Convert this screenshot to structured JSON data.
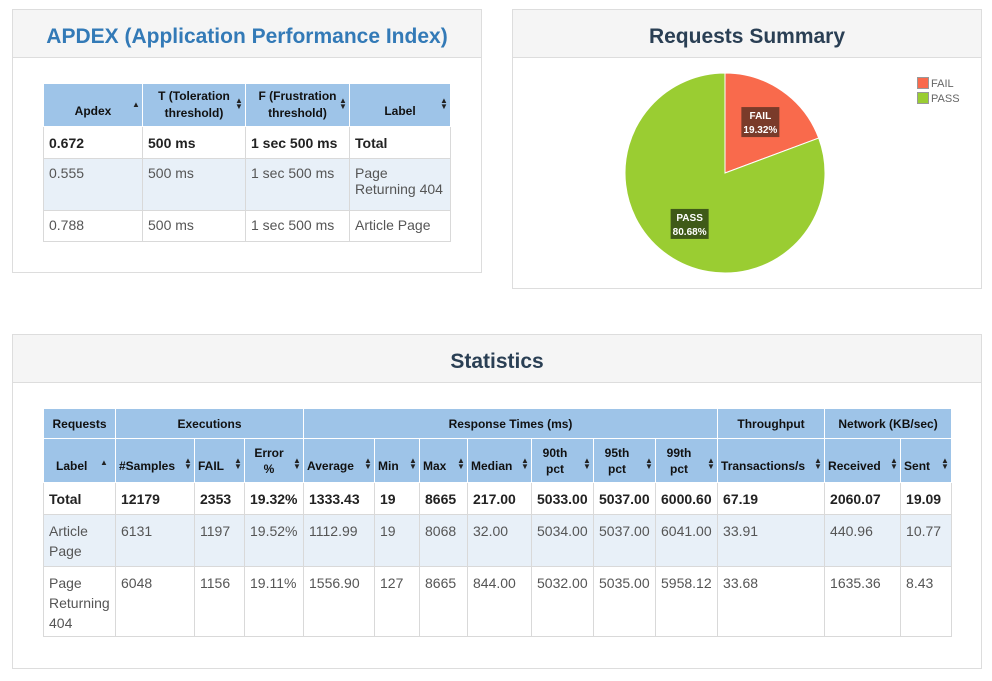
{
  "apdex": {
    "title": "APDEX (Application Performance Index)",
    "headers": [
      "Apdex",
      "T (Toleration threshold)",
      "F (Frustration threshold)",
      "Label"
    ],
    "rows": [
      [
        "0.672",
        "500 ms",
        "1 sec 500 ms",
        "Total"
      ],
      [
        "0.555",
        "500 ms",
        "1 sec 500 ms",
        "Page Returning 404"
      ],
      [
        "0.788",
        "500 ms",
        "1 sec 500 ms",
        "Article Page"
      ]
    ]
  },
  "requests_summary": {
    "title": "Requests Summary",
    "colors": {
      "fail": "#f96a4c",
      "pass": "#9acd32"
    },
    "chart_data": {
      "type": "pie",
      "categories": [
        "FAIL",
        "PASS"
      ],
      "values": [
        19.32,
        80.68
      ],
      "labels": [
        "19.32%",
        "80.68%"
      ],
      "legend_position": "top-right"
    }
  },
  "statistics": {
    "title": "Statistics",
    "groups": [
      "Requests",
      "Executions",
      "Response Times (ms)",
      "Throughput",
      "Network (KB/sec)"
    ],
    "headers": [
      "Label",
      "#Samples",
      "FAIL",
      "Error %",
      "Average",
      "Min",
      "Max",
      "Median",
      "90th pct",
      "95th pct",
      "99th pct",
      "Transactions/s",
      "Received",
      "Sent"
    ],
    "rows": [
      [
        "Total",
        "12179",
        "2353",
        "19.32%",
        "1333.43",
        "19",
        "8665",
        "217.00",
        "5033.00",
        "5037.00",
        "6000.60",
        "67.19",
        "2060.07",
        "19.09"
      ],
      [
        "Article Page",
        "6131",
        "1197",
        "19.52%",
        "1112.99",
        "19",
        "8068",
        "32.00",
        "5034.00",
        "5037.00",
        "6041.00",
        "33.91",
        "440.96",
        "10.77"
      ],
      [
        "Page Returning 404",
        "6048",
        "1156",
        "19.11%",
        "1556.90",
        "127",
        "8665",
        "844.00",
        "5032.00",
        "5035.00",
        "5958.12",
        "33.68",
        "1635.36",
        "8.43"
      ]
    ]
  }
}
